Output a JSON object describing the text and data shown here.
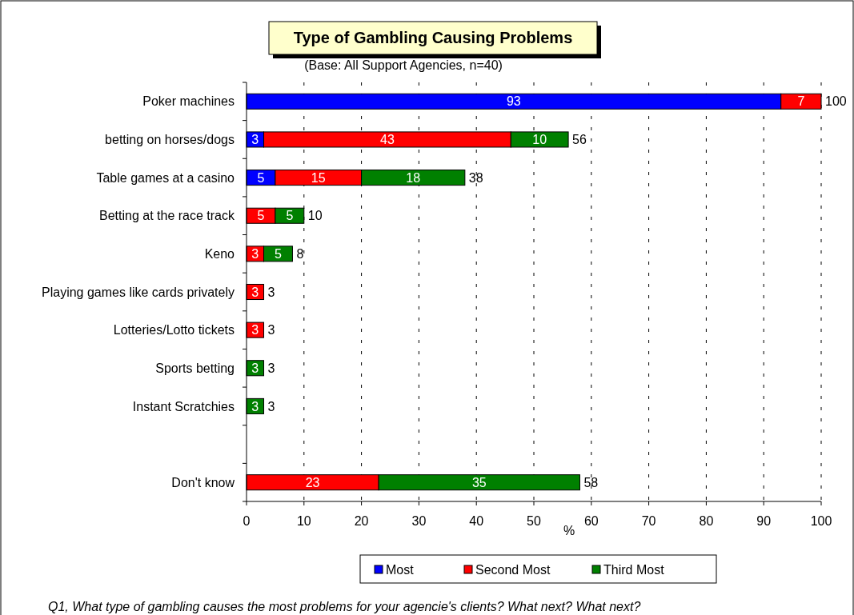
{
  "chart_data": {
    "type": "bar",
    "orientation": "horizontal",
    "stacked": true,
    "title": "Type of Gambling Causing Problems",
    "subtitle": "(Base: All Support Agencies, n=40)",
    "xlabel": "%",
    "categories": [
      "Poker machines",
      "betting on horses/dogs",
      "Table games at a casino",
      "Betting at the race track",
      "Keno",
      "Playing games like cards privately",
      "Lotteries/Lotto tickets",
      "Sports betting",
      "Instant Scratchies",
      null,
      "Don't know"
    ],
    "series": [
      {
        "name": "Most",
        "color": "#0000ff",
        "values": [
          93,
          3,
          5,
          null,
          null,
          null,
          null,
          null,
          null,
          null,
          null
        ]
      },
      {
        "name": "Second Most",
        "color": "#ff0000",
        "values": [
          7,
          43,
          15,
          5,
          3,
          3,
          3,
          null,
          null,
          null,
          23
        ]
      },
      {
        "name": "Third Most",
        "color": "#008000",
        "values": [
          null,
          10,
          18,
          5,
          5,
          null,
          null,
          3,
          3,
          null,
          35
        ]
      }
    ],
    "totals": [
      "100",
      "56",
      "38",
      "10",
      "8",
      "3",
      "3",
      "3",
      "3",
      null,
      "58"
    ],
    "data_labels": true,
    "xlim": [
      0,
      100
    ],
    "xticks": [
      0,
      10,
      20,
      30,
      40,
      50,
      60,
      70,
      80,
      90,
      100
    ],
    "grid": "x",
    "legend": "bottom",
    "annotations": [
      "Q1, What type of gambling causes the most problems for your agencie's clients? What next? What next?"
    ]
  }
}
